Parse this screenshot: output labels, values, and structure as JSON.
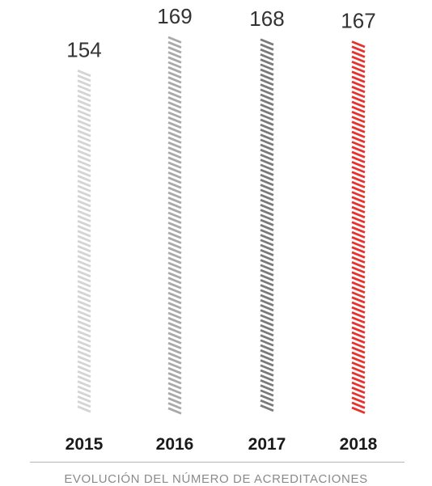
{
  "chart_data": {
    "type": "bar",
    "categories": [
      "2015",
      "2016",
      "2017",
      "2018"
    ],
    "values": [
      154,
      169,
      168,
      167
    ],
    "title": "",
    "xlabel": "",
    "ylabel": "",
    "ylim": [
      0,
      169
    ],
    "grid": false,
    "legend": "none",
    "bar_colors": [
      "#d4d4d4",
      "#a9a9a9",
      "#7a7a7a",
      "#e8312c"
    ],
    "bar_style": "diagonal-hatch",
    "caption": "EVOLUCIÓN DEL NÚMERO DE ACREDITACIONES"
  }
}
